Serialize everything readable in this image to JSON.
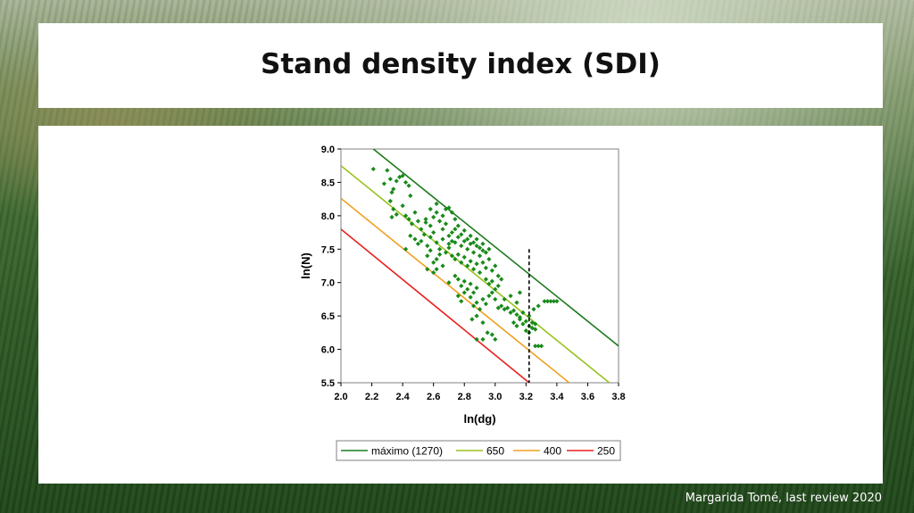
{
  "slide": {
    "title": "Stand density index (SDI)",
    "credit": "Margarida Tomé, last review 2020"
  },
  "chart_data": {
    "type": "scatter",
    "xlabel": "ln(dg)",
    "ylabel": "ln(N)",
    "xlim": [
      2.0,
      3.8
    ],
    "ylim": [
      5.5,
      9.0
    ],
    "xticks": [
      "2.0",
      "2.2",
      "2.4",
      "2.6",
      "2.8",
      "3.0",
      "3.2",
      "3.4",
      "3.6",
      "3.8"
    ],
    "yticks": [
      "9.0",
      "8.5",
      "8.0",
      "7.5",
      "7.0",
      "6.5",
      "6.0",
      "5.5"
    ],
    "grid": false,
    "legend_position": "bottom",
    "vertical_reference": {
      "x": 3.22,
      "y_range": [
        5.5,
        7.5
      ],
      "style": "dashed",
      "color": "#000000"
    },
    "lines": [
      {
        "name": "máximo (1270)",
        "color": "#1f7a1f",
        "points": [
          [
            2.21,
            9.0
          ],
          [
            3.8,
            6.05
          ]
        ]
      },
      {
        "name": "650",
        "color": "#99c21f",
        "points": [
          [
            2.0,
            8.75
          ],
          [
            3.74,
            5.5
          ]
        ]
      },
      {
        "name": "400",
        "color": "#f0a020",
        "points": [
          [
            2.0,
            8.26
          ],
          [
            3.48,
            5.5
          ]
        ]
      },
      {
        "name": "250",
        "color": "#e8201e",
        "points": [
          [
            2.0,
            7.8
          ],
          [
            3.22,
            5.5
          ]
        ]
      }
    ],
    "series": [
      {
        "color": "#1a8a1a",
        "points": [
          [
            2.21,
            8.7
          ],
          [
            2.28,
            8.48
          ],
          [
            2.3,
            8.68
          ],
          [
            2.32,
            8.55
          ],
          [
            2.33,
            8.35
          ],
          [
            2.34,
            8.4
          ],
          [
            2.36,
            8.52
          ],
          [
            2.38,
            8.58
          ],
          [
            2.4,
            8.6
          ],
          [
            2.42,
            8.5
          ],
          [
            2.44,
            8.45
          ],
          [
            2.45,
            8.3
          ],
          [
            2.32,
            8.22
          ],
          [
            2.34,
            8.1
          ],
          [
            2.33,
            7.98
          ],
          [
            2.36,
            8.02
          ],
          [
            2.4,
            8.15
          ],
          [
            2.42,
            8.0
          ],
          [
            2.44,
            7.95
          ],
          [
            2.46,
            7.88
          ],
          [
            2.48,
            8.05
          ],
          [
            2.5,
            7.92
          ],
          [
            2.52,
            7.8
          ],
          [
            2.55,
            7.9
          ],
          [
            2.42,
            7.5
          ],
          [
            2.45,
            7.7
          ],
          [
            2.48,
            7.65
          ],
          [
            2.5,
            7.58
          ],
          [
            2.52,
            7.62
          ],
          [
            2.54,
            7.72
          ],
          [
            2.56,
            7.55
          ],
          [
            2.58,
            7.68
          ],
          [
            2.6,
            7.75
          ],
          [
            2.62,
            7.6
          ],
          [
            2.64,
            7.5
          ],
          [
            2.66,
            7.65
          ],
          [
            2.55,
            7.95
          ],
          [
            2.58,
            7.85
          ],
          [
            2.6,
            7.98
          ],
          [
            2.62,
            8.05
          ],
          [
            2.64,
            7.92
          ],
          [
            2.66,
            8.0
          ],
          [
            2.68,
            8.1
          ],
          [
            2.7,
            8.12
          ],
          [
            2.72,
            8.05
          ],
          [
            2.74,
            7.95
          ],
          [
            2.66,
            7.8
          ],
          [
            2.68,
            7.88
          ],
          [
            2.7,
            7.7
          ],
          [
            2.72,
            7.75
          ],
          [
            2.74,
            7.6
          ],
          [
            2.76,
            7.68
          ],
          [
            2.78,
            7.55
          ],
          [
            2.8,
            7.62
          ],
          [
            2.82,
            7.5
          ],
          [
            2.84,
            7.58
          ],
          [
            2.86,
            7.45
          ],
          [
            2.88,
            7.55
          ],
          [
            2.9,
            7.4
          ],
          [
            2.92,
            7.48
          ],
          [
            2.68,
            7.45
          ],
          [
            2.7,
            7.52
          ],
          [
            2.72,
            7.4
          ],
          [
            2.74,
            7.35
          ],
          [
            2.76,
            7.42
          ],
          [
            2.78,
            7.3
          ],
          [
            2.8,
            7.38
          ],
          [
            2.82,
            7.25
          ],
          [
            2.84,
            7.32
          ],
          [
            2.86,
            7.2
          ],
          [
            2.88,
            7.28
          ],
          [
            2.9,
            7.15
          ],
          [
            2.6,
            7.3
          ],
          [
            2.62,
            7.2
          ],
          [
            2.66,
            7.25
          ],
          [
            2.7,
            7.0
          ],
          [
            2.74,
            7.1
          ],
          [
            2.76,
            7.05
          ],
          [
            2.78,
            6.95
          ],
          [
            2.8,
            7.02
          ],
          [
            2.82,
            6.9
          ],
          [
            2.84,
            6.98
          ],
          [
            2.86,
            6.85
          ],
          [
            2.88,
            6.92
          ],
          [
            2.92,
            7.3
          ],
          [
            2.94,
            7.22
          ],
          [
            2.96,
            7.35
          ],
          [
            2.98,
            7.18
          ],
          [
            3.0,
            7.25
          ],
          [
            3.02,
            7.1
          ],
          [
            3.04,
            7.05
          ],
          [
            2.94,
            7.05
          ],
          [
            2.96,
            6.98
          ],
          [
            2.98,
            7.02
          ],
          [
            3.0,
            6.9
          ],
          [
            3.02,
            6.95
          ],
          [
            2.76,
            6.8
          ],
          [
            2.78,
            6.72
          ],
          [
            2.8,
            6.85
          ],
          [
            2.84,
            6.78
          ],
          [
            2.86,
            6.65
          ],
          [
            2.88,
            6.7
          ],
          [
            2.9,
            6.6
          ],
          [
            2.92,
            6.75
          ],
          [
            2.94,
            6.68
          ],
          [
            2.96,
            6.8
          ],
          [
            2.98,
            6.85
          ],
          [
            3.0,
            6.75
          ],
          [
            2.85,
            6.45
          ],
          [
            2.88,
            6.5
          ],
          [
            2.92,
            6.4
          ],
          [
            2.95,
            6.25
          ],
          [
            2.98,
            6.22
          ],
          [
            2.88,
            6.15
          ],
          [
            2.92,
            6.15
          ],
          [
            3.0,
            6.15
          ],
          [
            3.02,
            6.62
          ],
          [
            3.04,
            6.65
          ],
          [
            3.06,
            6.6
          ],
          [
            3.08,
            6.62
          ],
          [
            3.1,
            6.55
          ],
          [
            3.12,
            6.58
          ],
          [
            3.14,
            6.52
          ],
          [
            3.16,
            6.48
          ],
          [
            3.06,
            6.75
          ],
          [
            3.1,
            6.8
          ],
          [
            3.14,
            6.7
          ],
          [
            3.16,
            6.85
          ],
          [
            3.12,
            6.4
          ],
          [
            3.14,
            6.35
          ],
          [
            3.16,
            6.45
          ],
          [
            3.18,
            6.38
          ],
          [
            3.2,
            6.42
          ],
          [
            3.22,
            6.35
          ],
          [
            3.24,
            6.4
          ],
          [
            3.26,
            6.3
          ],
          [
            3.2,
            6.28
          ],
          [
            3.22,
            6.25
          ],
          [
            3.24,
            6.32
          ],
          [
            3.26,
            6.38
          ],
          [
            3.18,
            6.55
          ],
          [
            3.22,
            6.5
          ],
          [
            3.25,
            6.6
          ],
          [
            3.28,
            6.65
          ],
          [
            3.26,
            6.05
          ],
          [
            3.28,
            6.05
          ],
          [
            3.3,
            6.05
          ],
          [
            3.32,
            6.72
          ],
          [
            3.34,
            6.72
          ],
          [
            3.36,
            6.72
          ],
          [
            3.38,
            6.72
          ],
          [
            3.4,
            6.72
          ],
          [
            2.74,
            7.8
          ],
          [
            2.76,
            7.85
          ],
          [
            2.78,
            7.72
          ],
          [
            2.8,
            7.78
          ],
          [
            2.82,
            7.65
          ],
          [
            2.84,
            7.7
          ],
          [
            2.86,
            7.6
          ],
          [
            2.88,
            7.65
          ],
          [
            2.9,
            7.52
          ],
          [
            2.92,
            7.58
          ],
          [
            2.94,
            7.45
          ],
          [
            2.96,
            7.5
          ],
          [
            2.56,
            7.4
          ],
          [
            2.58,
            7.48
          ],
          [
            2.62,
            7.35
          ],
          [
            2.64,
            7.42
          ],
          [
            2.7,
            7.58
          ],
          [
            2.72,
            7.62
          ],
          [
            2.58,
            8.1
          ],
          [
            2.62,
            8.18
          ],
          [
            2.56,
            7.2
          ],
          [
            2.6,
            7.15
          ]
        ]
      }
    ]
  }
}
